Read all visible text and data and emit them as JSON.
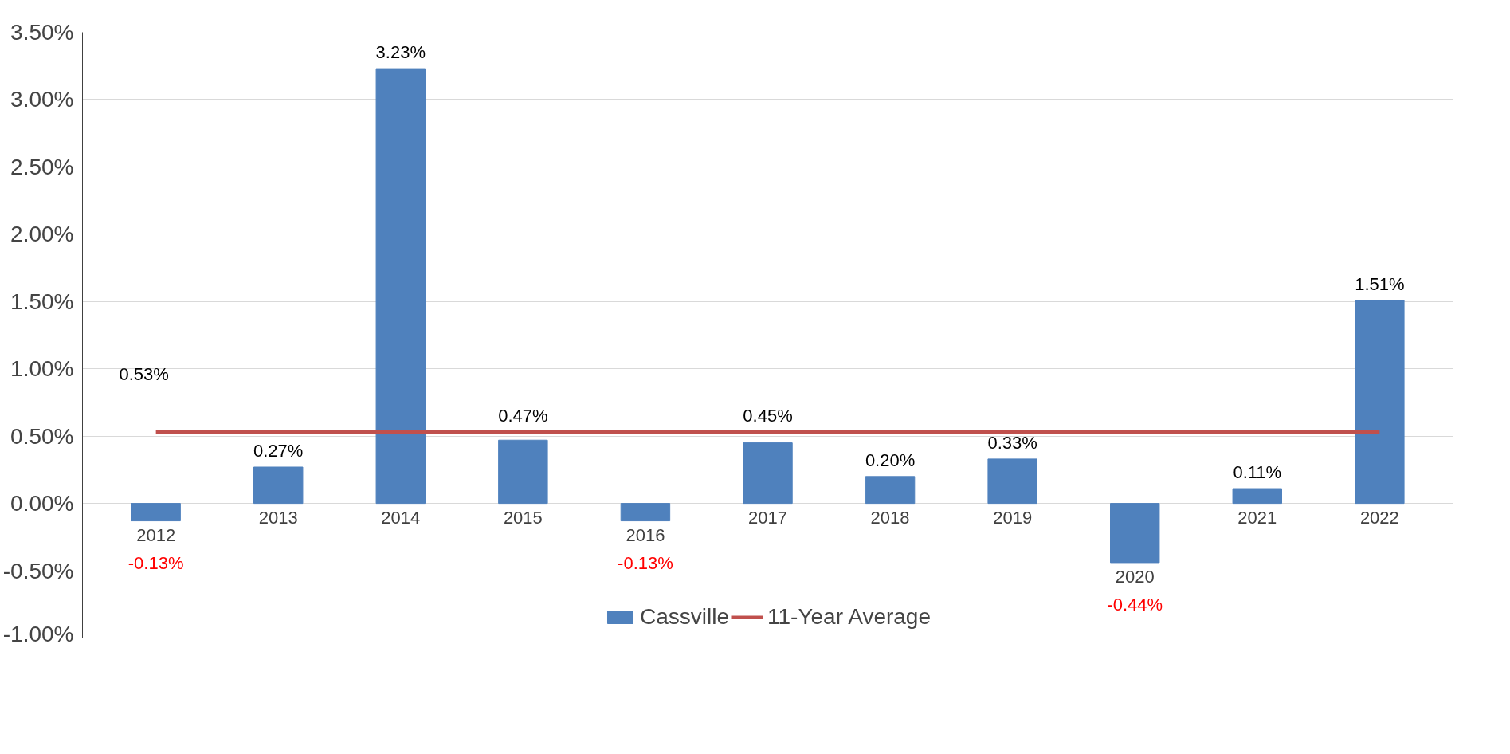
{
  "chart_data": {
    "type": "bar",
    "categories": [
      "2012",
      "2013",
      "2014",
      "2015",
      "2016",
      "2017",
      "2018",
      "2019",
      "2020",
      "2021",
      "2022"
    ],
    "series": [
      {
        "name": "Cassville",
        "type": "bar",
        "color": "#4f81bd",
        "values": [
          -0.13,
          0.27,
          3.23,
          0.47,
          -0.13,
          0.45,
          0.2,
          0.33,
          -0.44,
          0.11,
          1.51
        ],
        "value_labels": [
          "-0.13%",
          "0.27%",
          "3.23%",
          "0.47%",
          "-0.13%",
          "0.45%",
          "0.20%",
          "0.33%",
          "-0.44%",
          "0.11%",
          "1.51%"
        ]
      },
      {
        "name": "11-Year Average",
        "type": "line",
        "color": "#c0504d",
        "values": [
          0.53,
          0.53,
          0.53,
          0.53,
          0.53,
          0.53,
          0.53,
          0.53,
          0.53,
          0.53,
          0.53
        ],
        "value_labels": [
          "0.53%",
          null,
          null,
          null,
          null,
          null,
          null,
          null,
          null,
          null,
          null
        ]
      }
    ],
    "ylim": [
      -1,
      3.5
    ],
    "yticks": [
      {
        "value": -1,
        "label": "-1.00%"
      },
      {
        "value": -0.5,
        "label": "-0.50%"
      },
      {
        "value": 0,
        "label": "0.00%"
      },
      {
        "value": 0.5,
        "label": "0.50%"
      },
      {
        "value": 1,
        "label": "1.00%"
      },
      {
        "value": 1.5,
        "label": "1.50%"
      },
      {
        "value": 2,
        "label": "2.00%"
      },
      {
        "value": 2.5,
        "label": "2.50%"
      },
      {
        "value": 3,
        "label": "3.00%"
      },
      {
        "value": 3.5,
        "label": "3.50%"
      }
    ],
    "grid": "y",
    "legend": "bottom",
    "marker": "none",
    "line_style": "solid"
  }
}
